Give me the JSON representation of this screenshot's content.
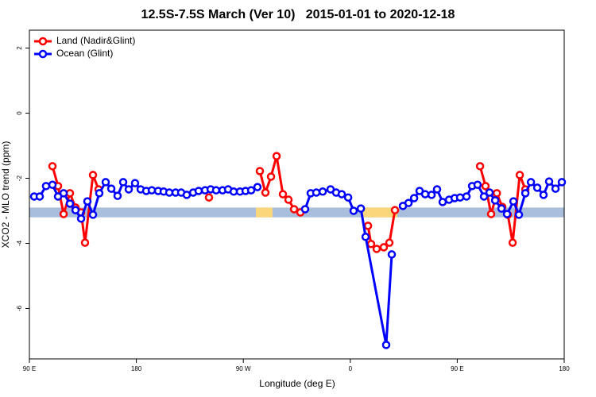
{
  "chart_data": {
    "type": "line",
    "title": "12.5S-7.5S March (Ver 10)   2015-01-01 to 2020-12-18",
    "xlabel": "Longitude (deg E)",
    "ylabel": "XCO2 - MLO trend (ppm)",
    "xlim": [
      90,
      540
    ],
    "ylim": [
      -7.55,
      2.55
    ],
    "xticks": [
      {
        "value": 90,
        "label": "90 E"
      },
      180,
      {
        "value": 270,
        "label": "90 W"
      },
      {
        "value": 360,
        "label": "0"
      },
      {
        "value": 450,
        "label": "90 E"
      },
      {
        "value": 540,
        "label": "180"
      }
    ],
    "yticks": [
      2,
      0,
      -2,
      -4,
      -6
    ],
    "legend": "top-left",
    "surface_band": {
      "range": [
        -3.2,
        -2.9
      ],
      "color": "#a8bedc",
      "land_color": "#fcd67a",
      "land": [
        [
          280.6,
          294.6
        ],
        [
          369.5,
          399.6
        ]
      ]
    },
    "series": [
      {
        "name": "Land (Nadir&Glint)",
        "color": "#ff0000",
        "x": [
          109.4,
          114.1,
          118.8,
          124.1,
          128.8,
          133.5,
          136.8,
          143.5,
          148.2,
          null,
          241.1,
          null,
          283.9,
          288.6,
          293.3,
          298.0,
          303.3,
          308.0,
          312.7,
          318.0,
          null,
          374.9,
          377.5,
          382.2,
          388.2,
          392.9,
          397.6,
          null,
          469.2,
          473.8,
          478.5,
          483.3,
          487.9,
          492.6,
          496.6,
          502.6,
          507.3
        ],
        "values": [
          -1.63,
          -2.24,
          -3.1,
          -2.46,
          -2.9,
          -3.05,
          -3.98,
          -1.9,
          -2.34,
          null,
          -2.59,
          null,
          -1.78,
          -2.44,
          -1.95,
          -1.32,
          -2.49,
          -2.66,
          -2.95,
          -3.05,
          null,
          -3.46,
          -4.02,
          -4.17,
          -4.12,
          -3.98,
          -2.98,
          null,
          -1.63,
          -2.24,
          -3.1,
          -2.46,
          -2.88,
          -3.12,
          -3.98,
          -1.9,
          -2.34
        ]
      },
      {
        "name": "Ocean (Glint)",
        "color": "#0000ff",
        "x": [
          94.0,
          98.7,
          104.0,
          109.4,
          114.1,
          118.8,
          124.1,
          128.8,
          133.5,
          138.8,
          143.5,
          148.8,
          154.2,
          158.9,
          164.2,
          168.9,
          173.6,
          178.9,
          183.6,
          188.3,
          193.0,
          198.3,
          203.0,
          207.7,
          213.0,
          217.7,
          222.4,
          227.8,
          232.4,
          237.8,
          242.5,
          247.1,
          252.5,
          257.2,
          261.9,
          267.2,
          271.9,
          276.6,
          281.9,
          null,
          322.0,
          326.7,
          331.4,
          336.8,
          343.4,
          348.1,
          352.8,
          358.2,
          362.8,
          368.9,
          372.9,
          390.2,
          394.9,
          null,
          404.3,
          409.0,
          413.7,
          418.3,
          423.0,
          428.4,
          433.0,
          437.7,
          443.1,
          447.8,
          452.4,
          457.8,
          462.5,
          467.1,
          472.5,
          477.2,
          481.9,
          487.2,
          491.9,
          497.3,
          501.9,
          507.3,
          512.0,
          517.3,
          522.6,
          527.3,
          532.7,
          538.0
        ],
        "values": [
          -2.56,
          -2.56,
          -2.24,
          -2.2,
          -2.56,
          -2.46,
          -2.78,
          -2.98,
          -3.24,
          -2.71,
          -3.12,
          -2.46,
          -2.12,
          -2.32,
          -2.54,
          -2.12,
          -2.34,
          -2.15,
          -2.34,
          -2.39,
          -2.37,
          -2.39,
          -2.41,
          -2.44,
          -2.44,
          -2.44,
          -2.51,
          -2.44,
          -2.39,
          -2.37,
          -2.34,
          -2.37,
          -2.37,
          -2.34,
          -2.41,
          -2.41,
          -2.39,
          -2.37,
          -2.27,
          null,
          -2.95,
          -2.46,
          -2.44,
          -2.41,
          -2.34,
          -2.44,
          -2.49,
          -2.59,
          -3.0,
          -2.93,
          -3.8,
          -7.12,
          -4.34,
          null,
          -2.85,
          -2.76,
          -2.61,
          -2.39,
          -2.49,
          -2.51,
          -2.34,
          -2.73,
          -2.66,
          -2.61,
          -2.59,
          -2.56,
          -2.24,
          -2.2,
          -2.56,
          -2.44,
          -2.68,
          -2.93,
          -3.1,
          -2.71,
          -3.12,
          -2.46,
          -2.12,
          -2.29,
          -2.51,
          -2.1,
          -2.32,
          -2.12
        ]
      }
    ]
  }
}
